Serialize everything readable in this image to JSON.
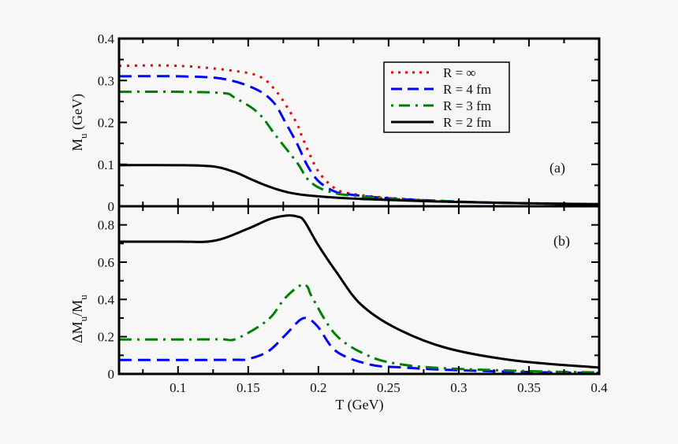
{
  "chart_data": [
    {
      "type": "line",
      "panel_label": "(a)",
      "ylabel_main": "M",
      "ylabel_sub": "u",
      "ylabel_unit": " (GeV)",
      "xlim": [
        0.058,
        0.4
      ],
      "ylim": [
        0,
        0.4
      ],
      "yticks": [
        "0",
        "0.1",
        "0.2",
        "0.3",
        "0.4"
      ],
      "ytick_values": [
        0,
        0.1,
        0.2,
        0.3,
        0.4
      ],
      "legend_position": "top-right",
      "series": [
        {
          "name": "R = ∞",
          "color": "#ff0000",
          "style": "dotted",
          "x": [
            0.058,
            0.1,
            0.14,
            0.159,
            0.17,
            0.178,
            0.185,
            0.188,
            0.193,
            0.2,
            0.21,
            0.22,
            0.25,
            0.3,
            0.35,
            0.4
          ],
          "y": [
            0.335,
            0.335,
            0.323,
            0.308,
            0.274,
            0.235,
            0.195,
            0.169,
            0.13,
            0.083,
            0.047,
            0.032,
            0.02,
            0.011,
            0.007,
            0.005
          ]
        },
        {
          "name": "R = 4 fm",
          "color": "#0000ff",
          "style": "dashed",
          "x": [
            0.058,
            0.1,
            0.132,
            0.155,
            0.168,
            0.177,
            0.185,
            0.192,
            0.2,
            0.211,
            0.22,
            0.25,
            0.3,
            0.35,
            0.4
          ],
          "y": [
            0.31,
            0.31,
            0.304,
            0.28,
            0.248,
            0.197,
            0.148,
            0.098,
            0.06,
            0.036,
            0.029,
            0.019,
            0.011,
            0.007,
            0.005
          ]
        },
        {
          "name": "R = 3 fm",
          "color": "#008000",
          "style": "dashdot",
          "x": [
            0.058,
            0.1,
            0.132,
            0.14,
            0.157,
            0.17,
            0.185,
            0.192,
            0.2,
            0.21,
            0.22,
            0.25,
            0.3,
            0.35,
            0.4
          ],
          "y": [
            0.273,
            0.273,
            0.27,
            0.26,
            0.223,
            0.167,
            0.103,
            0.066,
            0.045,
            0.033,
            0.027,
            0.018,
            0.011,
            0.007,
            0.005
          ]
        },
        {
          "name": "R = 2 fm",
          "color": "#000000",
          "style": "solid",
          "x": [
            0.058,
            0.1,
            0.125,
            0.14,
            0.151,
            0.16,
            0.17,
            0.18,
            0.192,
            0.215,
            0.25,
            0.3,
            0.35,
            0.4
          ],
          "y": [
            0.098,
            0.098,
            0.095,
            0.082,
            0.066,
            0.053,
            0.041,
            0.032,
            0.026,
            0.02,
            0.015,
            0.01,
            0.007,
            0.005
          ]
        }
      ]
    },
    {
      "type": "line",
      "panel_label": "(b)",
      "ylabel_main": "ΔM",
      "ylabel_sub": "u",
      "ylabel_mid": "/M",
      "ylabel_sub2": "u",
      "xlabel": "T (GeV)",
      "xlim": [
        0.058,
        0.4
      ],
      "ylim": [
        0,
        0.9
      ],
      "xticks": [
        "0.1",
        "0.15",
        "0.2",
        "0.25",
        "0.3",
        "0.35",
        "0.4"
      ],
      "xtick_values": [
        0.1,
        0.15,
        0.2,
        0.25,
        0.3,
        0.35,
        0.4
      ],
      "yticks": [
        "0",
        "0.2",
        "0.4",
        "0.6",
        "0.8"
      ],
      "ytick_values": [
        0,
        0.2,
        0.4,
        0.6,
        0.8
      ],
      "series": [
        {
          "color": "#0000ff",
          "style": "dashed",
          "x": [
            0.058,
            0.1,
            0.14,
            0.15,
            0.164,
            0.176,
            0.187,
            0.193,
            0.2,
            0.213,
            0.237,
            0.26,
            0.291,
            0.35,
            0.4
          ],
          "y": [
            0.075,
            0.075,
            0.076,
            0.08,
            0.12,
            0.205,
            0.29,
            0.295,
            0.25,
            0.12,
            0.05,
            0.035,
            0.022,
            0.01,
            0.005
          ]
        },
        {
          "color": "#008000",
          "style": "dashdot",
          "x": [
            0.058,
            0.1,
            0.13,
            0.142,
            0.164,
            0.176,
            0.187,
            0.192,
            0.196,
            0.213,
            0.237,
            0.26,
            0.291,
            0.35,
            0.4
          ],
          "y": [
            0.185,
            0.185,
            0.186,
            0.19,
            0.29,
            0.405,
            0.475,
            0.47,
            0.405,
            0.205,
            0.093,
            0.05,
            0.03,
            0.015,
            0.008
          ]
        },
        {
          "color": "#000000",
          "style": "solid",
          "x": [
            0.058,
            0.1,
            0.126,
            0.15,
            0.165,
            0.177,
            0.185,
            0.19,
            0.2,
            0.213,
            0.23,
            0.255,
            0.291,
            0.34,
            0.4
          ],
          "y": [
            0.71,
            0.71,
            0.715,
            0.78,
            0.83,
            0.85,
            0.845,
            0.82,
            0.69,
            0.545,
            0.375,
            0.247,
            0.14,
            0.072,
            0.034
          ]
        }
      ]
    }
  ]
}
